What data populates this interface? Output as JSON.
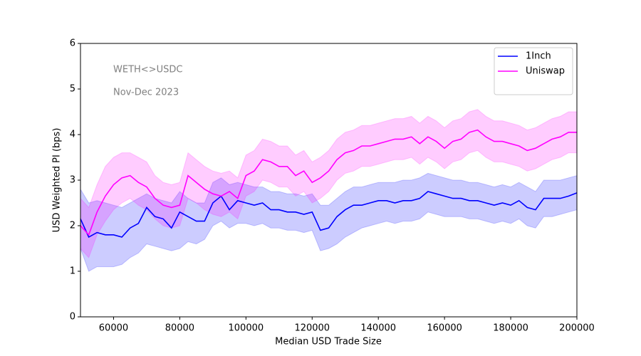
{
  "chart_data": {
    "type": "line",
    "xlabel": "Median USD Trade Size",
    "ylabel": "USD Weighted PI (bps)",
    "annotations": [
      "WETH<>USDC",
      "Nov-Dec 2023"
    ],
    "legend": "upper right",
    "band_opacity": 0.2,
    "x": [
      50000,
      52500,
      55000,
      57500,
      60000,
      62500,
      65000,
      67500,
      70000,
      72500,
      75000,
      77500,
      80000,
      82500,
      85000,
      87500,
      90000,
      92500,
      95000,
      97500,
      100000,
      102500,
      105000,
      107500,
      110000,
      112500,
      115000,
      117500,
      120000,
      122500,
      125000,
      127500,
      130000,
      132500,
      135000,
      137500,
      140000,
      142500,
      145000,
      147500,
      150000,
      152500,
      155000,
      157500,
      160000,
      162500,
      165000,
      167500,
      170000,
      172500,
      175000,
      177500,
      180000,
      182500,
      185000,
      187500,
      190000,
      192500,
      195000,
      197500,
      200000
    ],
    "xlim": [
      50000,
      200000
    ],
    "xticks": [
      60000,
      80000,
      100000,
      120000,
      140000,
      160000,
      180000,
      200000
    ],
    "ylim": [
      0,
      6
    ],
    "yticks": [
      0,
      1,
      2,
      3,
      4,
      5,
      6
    ],
    "series": [
      {
        "name": "1Inch",
        "color": "#0000ff",
        "values": [
          2.15,
          1.75,
          1.85,
          1.8,
          1.8,
          1.75,
          1.95,
          2.05,
          2.4,
          2.2,
          2.15,
          1.95,
          2.3,
          2.2,
          2.1,
          2.1,
          2.5,
          2.65,
          2.35,
          2.55,
          2.5,
          2.45,
          2.5,
          2.35,
          2.35,
          2.3,
          2.3,
          2.25,
          2.3,
          1.9,
          1.95,
          2.2,
          2.35,
          2.45,
          2.45,
          2.5,
          2.55,
          2.55,
          2.5,
          2.55,
          2.55,
          2.6,
          2.75,
          2.7,
          2.65,
          2.6,
          2.6,
          2.55,
          2.55,
          2.5,
          2.45,
          2.5,
          2.45,
          2.55,
          2.4,
          2.35,
          2.6,
          2.6,
          2.6,
          2.65,
          2.72
        ],
        "upper": [
          2.8,
          2.5,
          2.55,
          2.5,
          2.45,
          2.4,
          2.5,
          2.6,
          2.7,
          2.6,
          2.55,
          2.5,
          2.75,
          2.6,
          2.5,
          2.5,
          2.95,
          3.05,
          2.9,
          2.95,
          2.9,
          2.85,
          2.85,
          2.75,
          2.75,
          2.7,
          2.7,
          2.65,
          2.7,
          2.45,
          2.45,
          2.6,
          2.75,
          2.85,
          2.85,
          2.9,
          2.95,
          2.95,
          2.95,
          3.0,
          3.0,
          3.05,
          3.15,
          3.1,
          3.05,
          3.0,
          3.0,
          2.95,
          2.95,
          2.9,
          2.85,
          2.9,
          2.85,
          2.95,
          2.85,
          2.75,
          3.0,
          3.0,
          3.0,
          3.05,
          3.1
        ],
        "lower": [
          1.5,
          1.0,
          1.1,
          1.1,
          1.1,
          1.15,
          1.3,
          1.4,
          1.6,
          1.55,
          1.5,
          1.45,
          1.5,
          1.65,
          1.6,
          1.7,
          2.0,
          2.1,
          1.95,
          2.05,
          2.05,
          2.0,
          2.05,
          1.95,
          1.95,
          1.9,
          1.9,
          1.85,
          1.9,
          1.45,
          1.5,
          1.6,
          1.75,
          1.85,
          1.95,
          2.0,
          2.05,
          2.1,
          2.05,
          2.1,
          2.1,
          2.15,
          2.3,
          2.25,
          2.2,
          2.2,
          2.2,
          2.15,
          2.15,
          2.1,
          2.05,
          2.1,
          2.05,
          2.15,
          2.0,
          1.95,
          2.2,
          2.2,
          2.25,
          2.3,
          2.35
        ]
      },
      {
        "name": "Uniswap",
        "color": "#ff00ff",
        "values": [
          2.0,
          1.8,
          2.3,
          2.65,
          2.9,
          3.05,
          3.1,
          2.95,
          2.85,
          2.6,
          2.45,
          2.4,
          2.45,
          3.1,
          2.95,
          2.8,
          2.7,
          2.65,
          2.75,
          2.6,
          3.1,
          3.2,
          3.45,
          3.4,
          3.3,
          3.3,
          3.1,
          3.2,
          2.95,
          3.05,
          3.2,
          3.45,
          3.6,
          3.65,
          3.75,
          3.75,
          3.8,
          3.85,
          3.9,
          3.9,
          3.95,
          3.8,
          3.95,
          3.85,
          3.7,
          3.85,
          3.9,
          4.05,
          4.1,
          3.95,
          3.85,
          3.85,
          3.8,
          3.75,
          3.65,
          3.7,
          3.8,
          3.9,
          3.95,
          4.05,
          4.05
        ],
        "upper": [
          2.6,
          2.4,
          2.9,
          3.3,
          3.5,
          3.6,
          3.6,
          3.5,
          3.4,
          3.1,
          2.95,
          2.9,
          2.95,
          3.6,
          3.45,
          3.3,
          3.2,
          3.15,
          3.2,
          3.05,
          3.55,
          3.65,
          3.9,
          3.85,
          3.75,
          3.75,
          3.55,
          3.65,
          3.4,
          3.5,
          3.65,
          3.9,
          4.05,
          4.1,
          4.2,
          4.2,
          4.25,
          4.3,
          4.35,
          4.35,
          4.4,
          4.25,
          4.4,
          4.3,
          4.15,
          4.3,
          4.35,
          4.5,
          4.55,
          4.4,
          4.3,
          4.3,
          4.25,
          4.2,
          4.1,
          4.15,
          4.25,
          4.35,
          4.4,
          4.5,
          4.5
        ],
        "lower": [
          1.5,
          1.3,
          1.8,
          2.1,
          2.35,
          2.5,
          2.6,
          2.45,
          2.35,
          2.15,
          2.0,
          1.95,
          2.0,
          2.6,
          2.5,
          2.35,
          2.25,
          2.2,
          2.3,
          2.15,
          2.65,
          2.75,
          3.0,
          2.95,
          2.85,
          2.85,
          2.65,
          2.75,
          2.5,
          2.6,
          2.75,
          3.0,
          3.15,
          3.2,
          3.3,
          3.3,
          3.35,
          3.4,
          3.45,
          3.45,
          3.5,
          3.35,
          3.5,
          3.4,
          3.25,
          3.4,
          3.45,
          3.6,
          3.65,
          3.5,
          3.4,
          3.4,
          3.35,
          3.3,
          3.2,
          3.25,
          3.35,
          3.45,
          3.5,
          3.6,
          3.6
        ]
      }
    ]
  }
}
